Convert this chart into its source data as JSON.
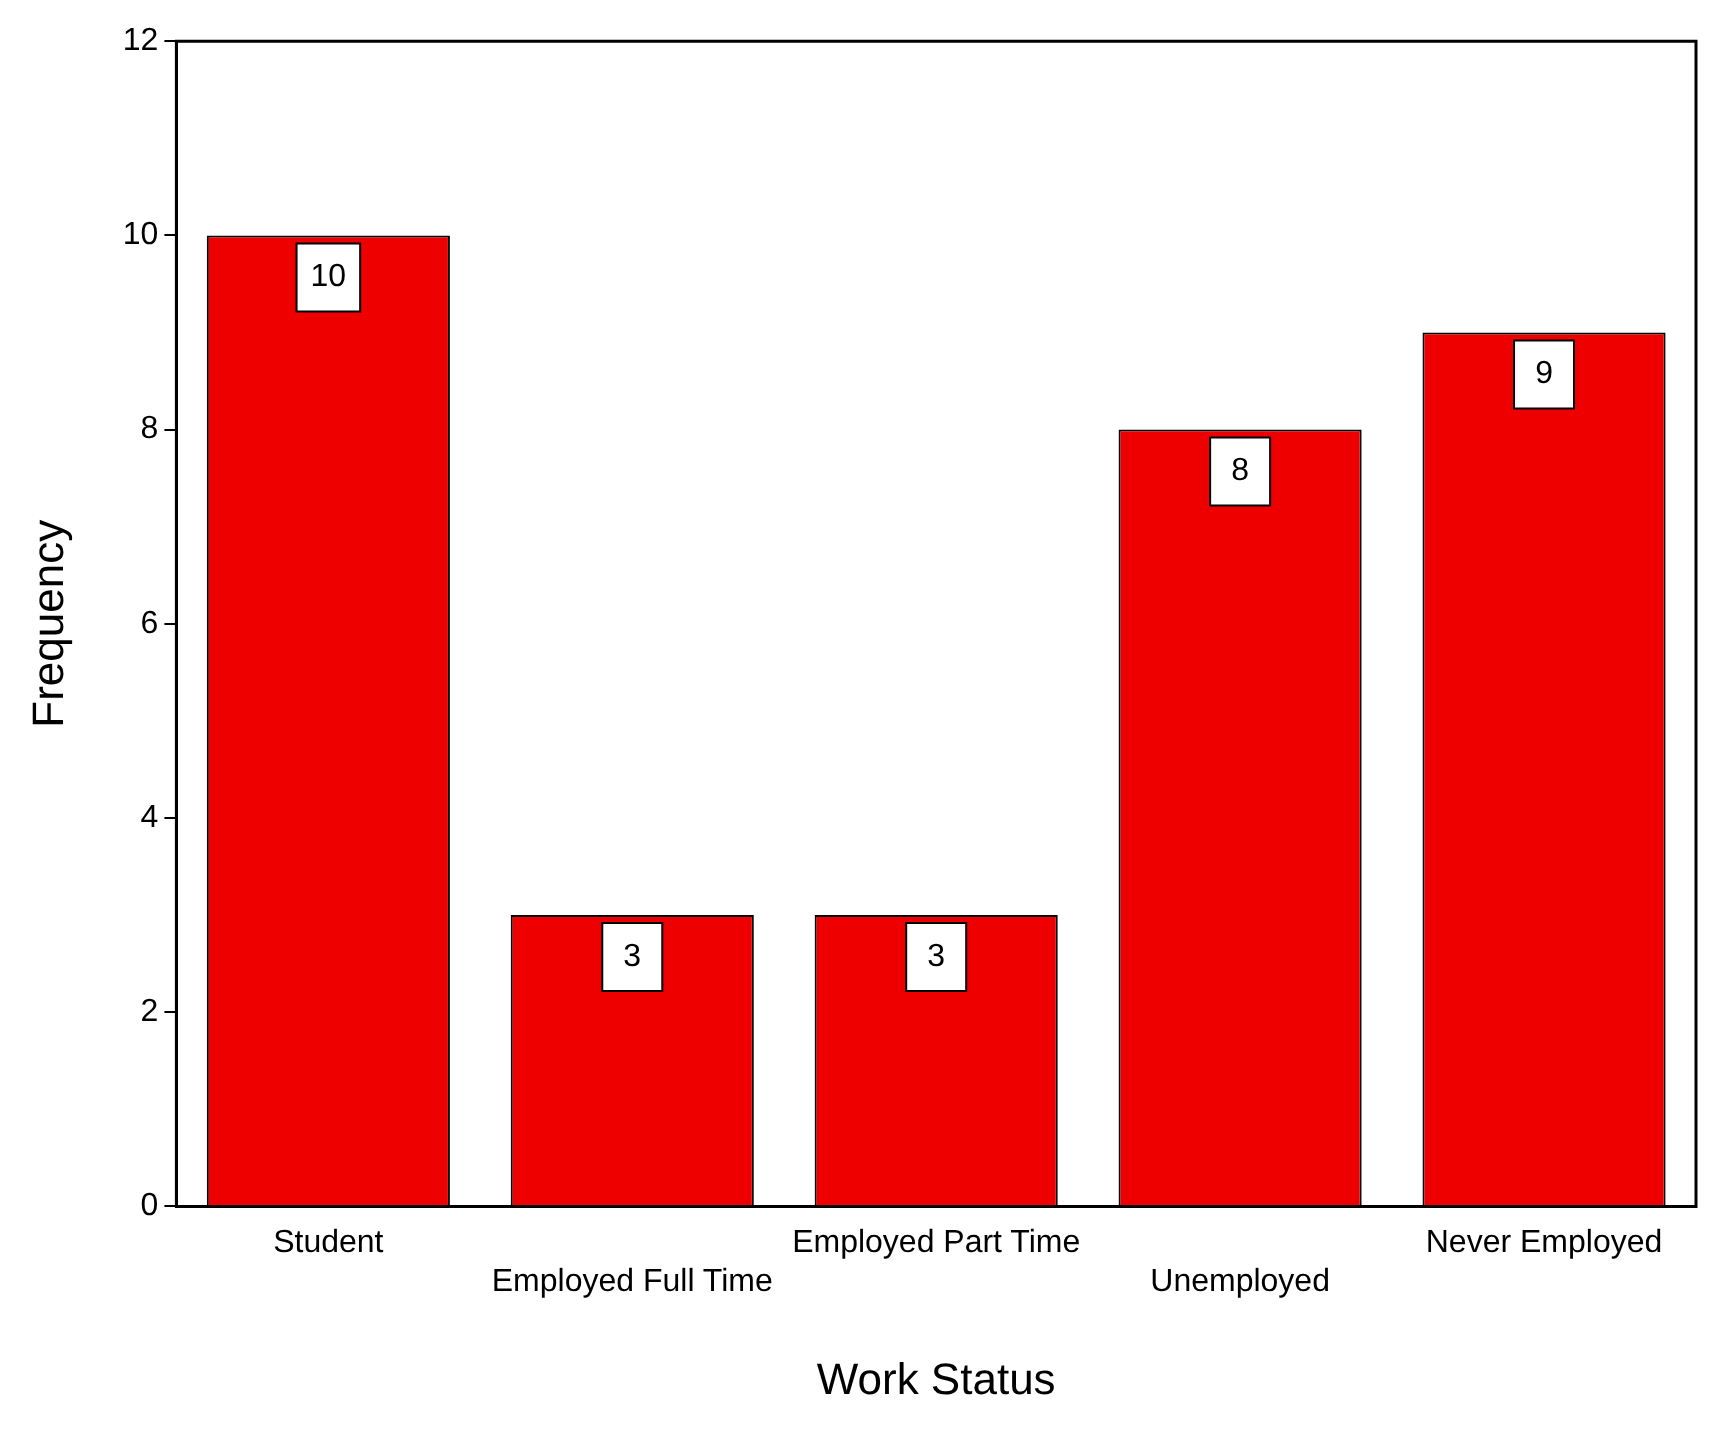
{
  "chart_data": {
    "type": "bar",
    "xlabel": "Work Status",
    "ylabel": "Frequency",
    "categories": [
      "Student",
      "Employed Full Time",
      "Employed Part Time",
      "Unemployed",
      "Never Employed"
    ],
    "values": [
      10,
      3,
      3,
      8,
      9
    ],
    "color": "#ee0000",
    "ylim": [
      0,
      12
    ],
    "yticks": [
      0,
      2,
      4,
      6,
      8,
      10,
      12
    ],
    "grid": false,
    "legend": false,
    "data_labels": true
  }
}
